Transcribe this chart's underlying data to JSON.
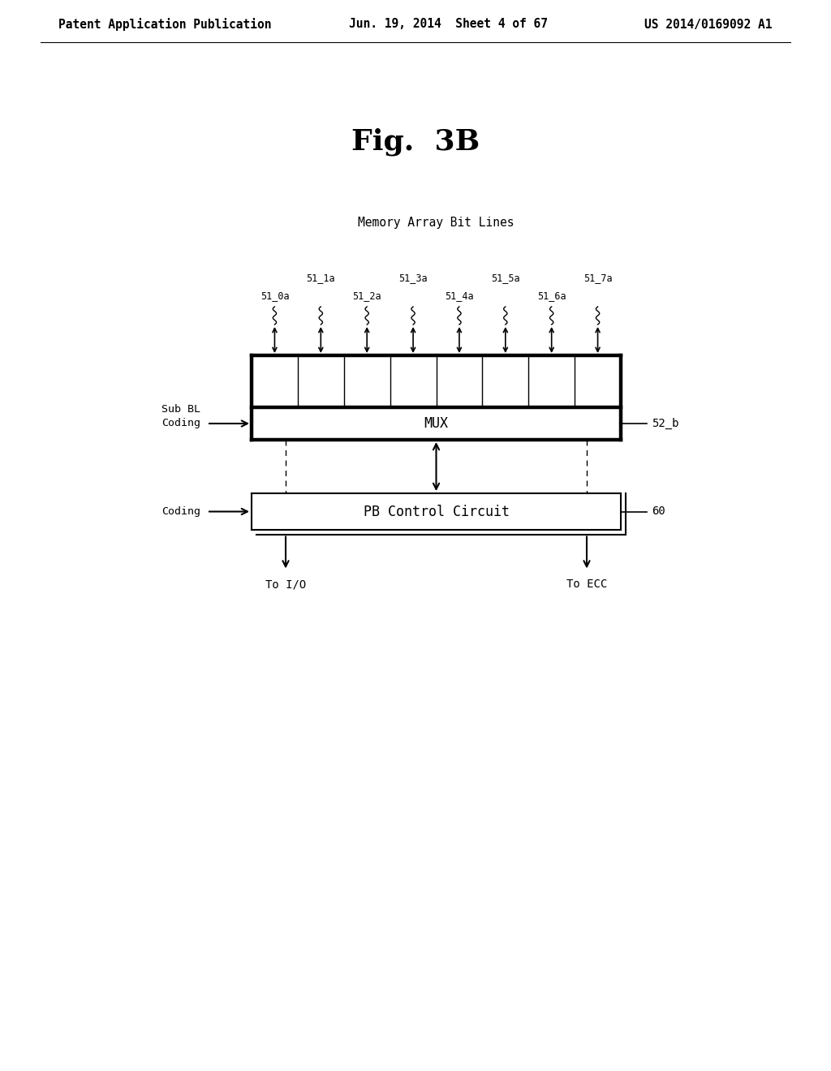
{
  "bg_color": "#ffffff",
  "title": "Fig.  3B",
  "title_fontsize": 26,
  "header_left": "Patent Application Publication",
  "header_center": "Jun. 19, 2014  Sheet 4 of 67",
  "header_right": "US 2014/0169092 A1",
  "header_fontsize": 10.5,
  "memory_label": "Memory Array Bit Lines",
  "bit_line_labels": [
    "51_0a",
    "51_1a",
    "51_2a",
    "51_3a",
    "51_4a",
    "51_5a",
    "51_6a",
    "51_7a"
  ],
  "mux_label": "MUX",
  "mux_ref": "52_b",
  "pb_label": "PB Control Circuit",
  "pb_ref": "60",
  "sub_bl_label": "Sub BL\nCoding",
  "coding_label": "Coding",
  "to_io_label": "To I/O",
  "to_ecc_label": "To ECC",
  "font_family": "monospace"
}
